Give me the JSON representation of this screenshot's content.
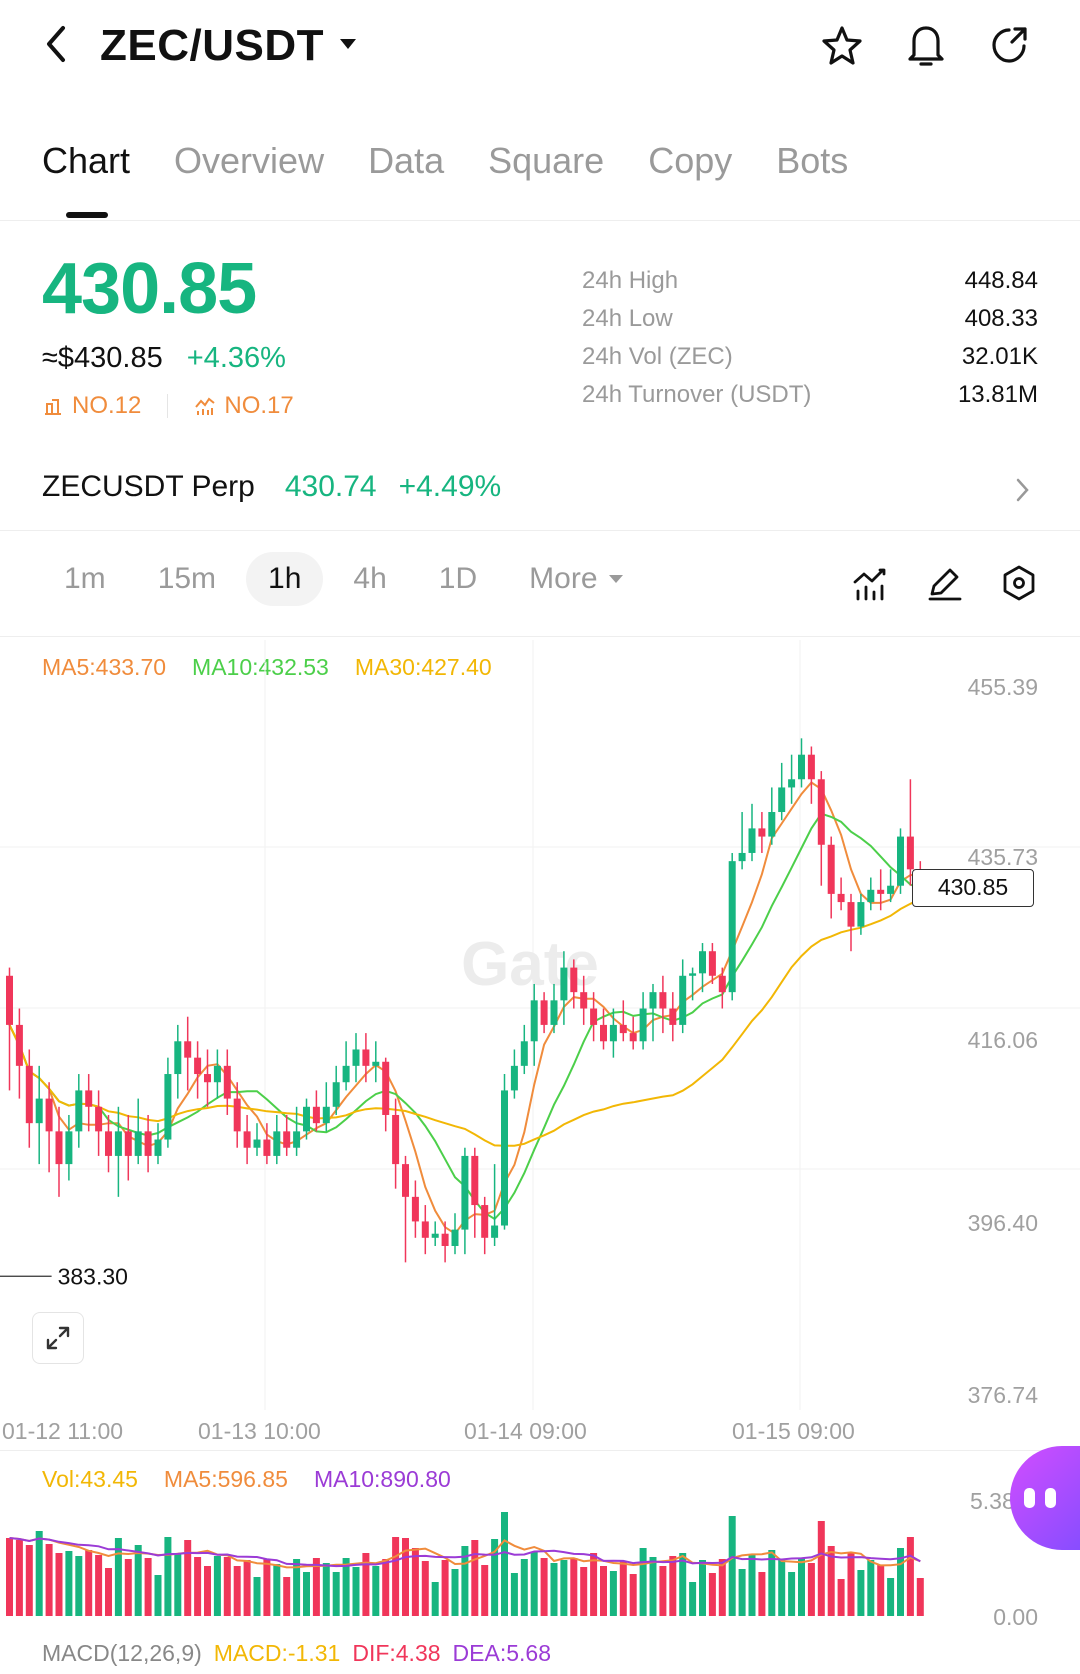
{
  "header": {
    "pair": "ZEC/USDT",
    "icons": [
      "back-arrow-icon",
      "caret-down-icon",
      "star-icon",
      "bell-icon",
      "share-icon"
    ]
  },
  "tabs": [
    "Chart",
    "Overview",
    "Data",
    "Square",
    "Copy",
    "Bots"
  ],
  "active_tab": "Chart",
  "price": {
    "last": "430.85",
    "usd": "≈$430.85",
    "change": "+4.36%",
    "rank1": "NO.12",
    "rank2": "NO.17",
    "up_color": "#17b580",
    "down_color": "#f0365a"
  },
  "stats": [
    {
      "label": "24h  High",
      "value": "448.84"
    },
    {
      "label": "24h  Low",
      "value": "408.33"
    },
    {
      "label": "24h  Vol (ZEC)",
      "value": "32.01K"
    },
    {
      "label": "24h  Turnover (USDT)",
      "value": "13.81M"
    }
  ],
  "perp": {
    "name": "ZECUSDT Perp",
    "price": "430.74",
    "change": "+4.49%"
  },
  "intervals": [
    "1m",
    "15m",
    "1h",
    "4h",
    "1D",
    "More"
  ],
  "active_interval": "1h",
  "chart_toolbar_icons": [
    "indicator-icon",
    "pencil-icon",
    "settings-hex-icon"
  ],
  "ma_legend": [
    {
      "text": "MA5:433.70",
      "color": "#f08c3c"
    },
    {
      "text": "MA10:432.53",
      "color": "#4ccf4a"
    },
    {
      "text": "MA30:427.40",
      "color": "#f2b705"
    }
  ],
  "y_ticks": [
    "455.39",
    "435.73",
    "416.06",
    "396.40",
    "376.74"
  ],
  "x_ticks": [
    "01-12 11:00",
    "01-13 10:00",
    "01-14 09:00",
    "01-15 09:00"
  ],
  "current_price_tag": "430.85",
  "high_label": "448.84",
  "low_label": "383.30",
  "watermark": "Gate",
  "volume_legend": [
    {
      "text": "Vol:43.45",
      "color": "#f2b705"
    },
    {
      "text": "MA5:596.85",
      "color": "#f08c3c"
    },
    {
      "text": "MA10:890.80",
      "color": "#9b3bd6"
    }
  ],
  "volume_ticks": [
    "5.38",
    "0.00"
  ],
  "macd_legend": [
    {
      "text": "MACD(12,26,9)",
      "color": "#888888"
    },
    {
      "text": "MACD:-1.31",
      "color": "#f2b705"
    },
    {
      "text": "DIF:4.38",
      "color": "#f0365a"
    },
    {
      "text": "DEA:5.68",
      "color": "#9b3bd6"
    }
  ],
  "chart_data": {
    "type": "candlestick",
    "y_range": [
      376.74,
      455.39
    ],
    "high": 448.84,
    "low": 383.3,
    "close": 430.85,
    "candles": [
      [
        420,
        414,
        421,
        406
      ],
      [
        414,
        409,
        416,
        405
      ],
      [
        409,
        402,
        411,
        399
      ],
      [
        402,
        405,
        409,
        397
      ],
      [
        405,
        401,
        407,
        396
      ],
      [
        401,
        397,
        404,
        393
      ],
      [
        397,
        401,
        403,
        395
      ],
      [
        401,
        406,
        408,
        399
      ],
      [
        406,
        404,
        408,
        401
      ],
      [
        404,
        401,
        406,
        398
      ],
      [
        401,
        398,
        403,
        396
      ],
      [
        398,
        401,
        404,
        393
      ],
      [
        401,
        398,
        403,
        395
      ],
      [
        398,
        401,
        405,
        397
      ],
      [
        401,
        398,
        403,
        396
      ],
      [
        398,
        400,
        402,
        397
      ],
      [
        400,
        408,
        410,
        399
      ],
      [
        408,
        412,
        414,
        405
      ],
      [
        412,
        410,
        415,
        406
      ],
      [
        410,
        408,
        412,
        405
      ],
      [
        408,
        407,
        411,
        404
      ],
      [
        407,
        409,
        411,
        405
      ],
      [
        409,
        405,
        411,
        403
      ],
      [
        405,
        401,
        407,
        399
      ],
      [
        401,
        399,
        403,
        397
      ],
      [
        399,
        400,
        402,
        398
      ],
      [
        400,
        398,
        402,
        397
      ],
      [
        398,
        401,
        403,
        397
      ],
      [
        401,
        399,
        403,
        398
      ],
      [
        399,
        401,
        404,
        398
      ],
      [
        401,
        404,
        405,
        400
      ],
      [
        404,
        402,
        406,
        401
      ],
      [
        402,
        404,
        407,
        401
      ],
      [
        404,
        407,
        409,
        403
      ],
      [
        407,
        409,
        412,
        406
      ],
      [
        409,
        411,
        413,
        407
      ],
      [
        411,
        409,
        413,
        407
      ],
      [
        409,
        409.5,
        412,
        407
      ],
      [
        409.5,
        403,
        410,
        401
      ],
      [
        403,
        397,
        405,
        394
      ],
      [
        397,
        393,
        398,
        385
      ],
      [
        393,
        390,
        395,
        388
      ],
      [
        390,
        388,
        392,
        386
      ],
      [
        388,
        388.5,
        390,
        387
      ],
      [
        388.5,
        387,
        390,
        385
      ],
      [
        387,
        389,
        391,
        386
      ],
      [
        389,
        398,
        399,
        386
      ],
      [
        398,
        392,
        399,
        388
      ],
      [
        392,
        388,
        393,
        386
      ],
      [
        388,
        389.5,
        397,
        387
      ],
      [
        389.5,
        406,
        408,
        389
      ],
      [
        406,
        409,
        411,
        405
      ],
      [
        409,
        412,
        414,
        408
      ],
      [
        412,
        417,
        419,
        409
      ],
      [
        417,
        414,
        418,
        413
      ],
      [
        414,
        417,
        419,
        413
      ],
      [
        417,
        421,
        423,
        414
      ],
      [
        421,
        418,
        422,
        416
      ],
      [
        418,
        416,
        420,
        414
      ],
      [
        416,
        414,
        418,
        412
      ],
      [
        414,
        412,
        416,
        411
      ],
      [
        412,
        414,
        416,
        410
      ],
      [
        414,
        413,
        417,
        412
      ],
      [
        413,
        412,
        415,
        411
      ],
      [
        412,
        416,
        418,
        411
      ],
      [
        416,
        418,
        419,
        412
      ],
      [
        418,
        416,
        420,
        413
      ],
      [
        416,
        414,
        418,
        412
      ],
      [
        414,
        420,
        422,
        413
      ],
      [
        420,
        420.3,
        421,
        417
      ],
      [
        420.3,
        423,
        424,
        418
      ],
      [
        423,
        420,
        424,
        419
      ],
      [
        420,
        418,
        421,
        416
      ],
      [
        418,
        434,
        435,
        417
      ],
      [
        434,
        435,
        440,
        433
      ],
      [
        435,
        438,
        441,
        434
      ],
      [
        438,
        437,
        440,
        435
      ],
      [
        437,
        440,
        443,
        436
      ],
      [
        440,
        443,
        446,
        439
      ],
      [
        443,
        444,
        447,
        441
      ],
      [
        444,
        447,
        449,
        443
      ],
      [
        447,
        444,
        448,
        441
      ],
      [
        444,
        436,
        445,
        431
      ],
      [
        436,
        430,
        437,
        427
      ],
      [
        430,
        429,
        432,
        428
      ],
      [
        429,
        426,
        430,
        423
      ],
      [
        426,
        429,
        430,
        425
      ],
      [
        429,
        430.5,
        432,
        428
      ],
      [
        430.5,
        430,
        433,
        428
      ],
      [
        430,
        431,
        433,
        429
      ],
      [
        431,
        437,
        438,
        430
      ],
      [
        437,
        433,
        444,
        431
      ],
      [
        433,
        430.85,
        434,
        429
      ]
    ]
  }
}
